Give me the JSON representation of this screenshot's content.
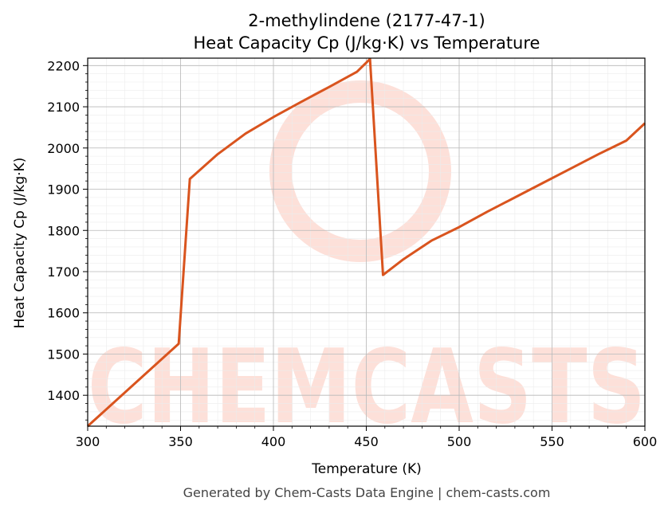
{
  "chart_data": {
    "type": "line",
    "title": "2-methylindene (2177-47-1)",
    "subtitle": "Heat Capacity Cp (J/kg·K) vs Temperature",
    "xlabel": "Temperature (K)",
    "ylabel": "Heat Capacity Cp (J/kg·K)",
    "xlim": [
      300,
      600
    ],
    "ylim": [
      1325,
      2218
    ],
    "x_ticks": [
      300,
      350,
      400,
      450,
      500,
      550,
      600
    ],
    "y_ticks": [
      1400,
      1500,
      1600,
      1700,
      1800,
      1900,
      2000,
      2100,
      2200
    ],
    "grid": true,
    "series": [
      {
        "color": "#d9541e",
        "points": [
          [
            300,
            1325
          ],
          [
            349,
            1525
          ],
          [
            355,
            1925
          ],
          [
            370,
            1985
          ],
          [
            385,
            2035
          ],
          [
            400,
            2075
          ],
          [
            415,
            2112
          ],
          [
            430,
            2148
          ],
          [
            445,
            2185
          ],
          [
            452,
            2216
          ],
          [
            459,
            1692
          ],
          [
            470,
            1730
          ],
          [
            485,
            1775
          ],
          [
            500,
            1808
          ],
          [
            515,
            1845
          ],
          [
            530,
            1880
          ],
          [
            545,
            1915
          ],
          [
            560,
            1950
          ],
          [
            575,
            1985
          ],
          [
            590,
            2018
          ],
          [
            600,
            2060
          ]
        ]
      }
    ]
  },
  "watermark": {
    "text": "CHEMCASTS",
    "color": "#fde0d9"
  },
  "footer": "Generated by Chem-Casts Data Engine | chem-casts.com"
}
